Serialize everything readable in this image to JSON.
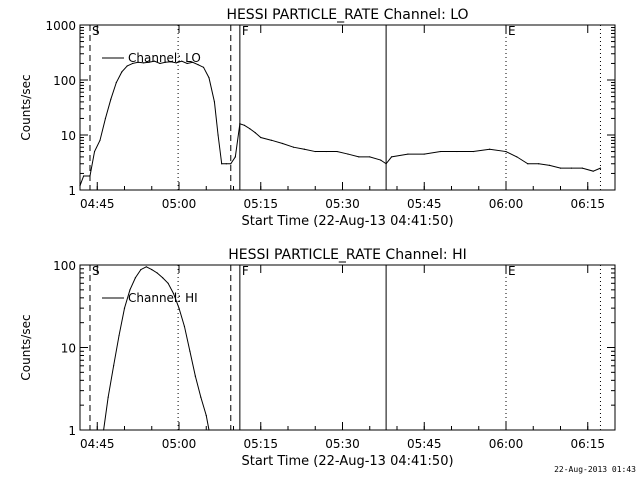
{
  "chart_data": [
    {
      "type": "line",
      "title": "HESSI PARTICLE_RATE Channel: LO",
      "xlabel": "Start Time (22-Aug-13 04:41:50)",
      "ylabel": "Counts/sec",
      "yscale": "log",
      "ylim": [
        1,
        1000
      ],
      "xlim": [
        "04:41:50",
        "06:20:00"
      ],
      "x_ticks": [
        "04:45",
        "05:00",
        "05:15",
        "05:30",
        "05:45",
        "06:00",
        "06:15"
      ],
      "y_ticks": [
        "1",
        "10",
        "100",
        "1000"
      ],
      "legend": {
        "label": "Channel: LO",
        "placement": "top-left"
      },
      "markers": [
        {
          "label": "S",
          "time": "04:43:40",
          "style": "dashed"
        },
        {
          "label": "",
          "time": "05:09:30",
          "style": "dashed"
        },
        {
          "label": "F",
          "time": "05:11:10",
          "style": "solid"
        },
        {
          "label": "",
          "time": "05:38:00",
          "style": "solid"
        },
        {
          "label": "E",
          "time": "06:00:00",
          "style": "dotted"
        },
        {
          "label": "",
          "time": "04:59:50",
          "style": "dotted"
        },
        {
          "label": "",
          "time": "06:17:20",
          "style": "dotted"
        }
      ],
      "series": [
        {
          "name": "Channel: LO",
          "x": [
            "04:41:50",
            "04:42:30",
            "04:43:40",
            "04:44:30",
            "04:45:30",
            "04:46:30",
            "04:47:30",
            "04:48:30",
            "04:49:30",
            "04:50:30",
            "04:51:30",
            "04:52:30",
            "04:53:30",
            "04:54:30",
            "04:55:30",
            "04:56:30",
            "04:57:30",
            "04:58:30",
            "04:59:30",
            "05:00:30",
            "05:01:30",
            "05:02:30",
            "05:03:30",
            "05:04:30",
            "05:05:30",
            "05:06:30",
            "05:07:10",
            "05:07:50",
            "05:08:40",
            "05:09:30",
            "05:10:20",
            "05:11:10",
            "05:12:00",
            "05:13:00",
            "05:14:00",
            "05:15:00",
            "05:17:00",
            "05:19:00",
            "05:21:00",
            "05:23:00",
            "05:25:00",
            "05:27:00",
            "05:29:00",
            "05:31:00",
            "05:33:00",
            "05:35:00",
            "05:37:00",
            "05:38:00",
            "05:39:00",
            "05:42:00",
            "05:45:00",
            "05:48:00",
            "05:51:00",
            "05:54:00",
            "05:57:00",
            "06:00:00",
            "06:02:00",
            "06:04:00",
            "06:06:00",
            "06:08:00",
            "06:10:00",
            "06:12:00",
            "06:14:00",
            "06:16:00",
            "06:17:20"
          ],
          "values": [
            1.2,
            1.8,
            1.8,
            5,
            8,
            20,
            45,
            90,
            140,
            180,
            200,
            210,
            205,
            210,
            220,
            200,
            210,
            215,
            205,
            220,
            200,
            210,
            190,
            170,
            110,
            40,
            10,
            3,
            3,
            3,
            4,
            16,
            15,
            13,
            11,
            9,
            8,
            7,
            6,
            5.5,
            5,
            5,
            5,
            4.5,
            4,
            4,
            3.5,
            3,
            4,
            4.5,
            4.5,
            5,
            5,
            5,
            5.5,
            5,
            4,
            3,
            3,
            2.8,
            2.5,
            2.5,
            2.5,
            2.2,
            2.5
          ]
        }
      ]
    },
    {
      "type": "line",
      "title": "HESSI PARTICLE_RATE Channel: HI",
      "xlabel": "Start Time (22-Aug-13 04:41:50)",
      "ylabel": "Counts/sec",
      "yscale": "log",
      "ylim": [
        1,
        100
      ],
      "xlim": [
        "04:41:50",
        "06:20:00"
      ],
      "x_ticks": [
        "04:45",
        "05:00",
        "05:15",
        "05:30",
        "05:45",
        "06:00",
        "06:15"
      ],
      "y_ticks": [
        "1",
        "10",
        "100"
      ],
      "legend": {
        "label": "Channel: HI",
        "placement": "top-left"
      },
      "markers": [
        {
          "label": "S",
          "time": "04:43:40",
          "style": "dashed"
        },
        {
          "label": "",
          "time": "05:09:30",
          "style": "dashed"
        },
        {
          "label": "F",
          "time": "05:11:10",
          "style": "solid"
        },
        {
          "label": "",
          "time": "05:38:00",
          "style": "solid"
        },
        {
          "label": "E",
          "time": "06:00:00",
          "style": "dotted"
        },
        {
          "label": "",
          "time": "04:59:50",
          "style": "dotted"
        },
        {
          "label": "",
          "time": "06:17:20",
          "style": "dotted"
        }
      ],
      "series": [
        {
          "name": "Channel: HI",
          "x": [
            "04:46:10",
            "04:47:00",
            "04:48:00",
            "04:49:00",
            "04:50:00",
            "04:51:00",
            "04:52:00",
            "04:53:00",
            "04:54:00",
            "04:55:00",
            "04:56:00",
            "04:57:00",
            "04:58:00",
            "04:59:00",
            "05:00:00",
            "05:01:00",
            "05:02:00",
            "05:03:00",
            "05:04:00",
            "05:05:00",
            "05:05:30"
          ],
          "values": [
            1,
            2.5,
            6,
            14,
            30,
            50,
            70,
            88,
            95,
            88,
            80,
            70,
            60,
            45,
            30,
            18,
            9,
            4.5,
            2.5,
            1.5,
            1
          ]
        }
      ]
    }
  ],
  "chart_legend_labels": [
    "Channel: LO",
    "Channel: HI"
  ],
  "marker_labels": [
    "S",
    "F",
    "E"
  ],
  "footer_timestamp": "22-Aug-2013 01:43"
}
